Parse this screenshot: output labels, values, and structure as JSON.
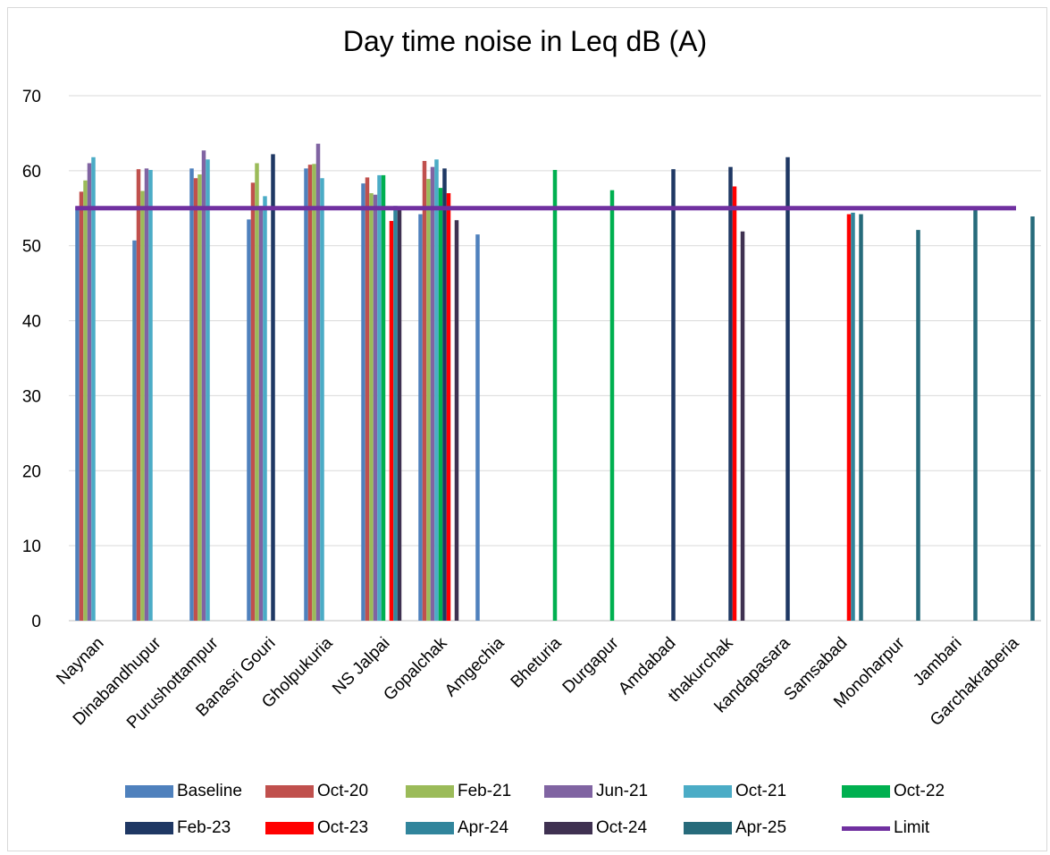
{
  "chart_data": {
    "type": "bar",
    "title": "Day time noise in Leq dB (A)",
    "xlabel": "",
    "ylabel": "",
    "ylim": [
      0,
      70
    ],
    "yticks": [
      0,
      10,
      20,
      30,
      40,
      50,
      60,
      70
    ],
    "grid": true,
    "legend_position": "bottom",
    "categories": [
      "Naynan",
      "Dinabandhupur",
      "Purushottampur",
      "Banasri Gouri",
      "Gholpukuria",
      "NS Jalpai",
      "Gopalchak",
      "Amgechia",
      "Bheturia",
      "Durgapur",
      "Amdabad",
      "thakurchak",
      "kandapasara",
      "Samsabad",
      "Monoharpur",
      "Jambari",
      "Garchakraberia"
    ],
    "series": [
      {
        "name": "Baseline",
        "color": "#4f81bd",
        "values": [
          55.2,
          50.7,
          60.3,
          53.5,
          60.3,
          58.3,
          54.2,
          51.5,
          null,
          null,
          null,
          null,
          null,
          null,
          null,
          null,
          null
        ]
      },
      {
        "name": "Oct-20",
        "color": "#c0504d",
        "values": [
          57.2,
          60.2,
          59.0,
          58.4,
          60.8,
          59.1,
          61.3,
          null,
          null,
          null,
          null,
          null,
          null,
          null,
          null,
          null,
          null
        ]
      },
      {
        "name": "Feb-21",
        "color": "#9bbb59",
        "values": [
          58.7,
          57.3,
          59.5,
          61.0,
          60.9,
          57.0,
          58.9,
          null,
          null,
          null,
          null,
          null,
          null,
          null,
          null,
          null,
          null
        ]
      },
      {
        "name": "Jun-21",
        "color": "#8064a2",
        "values": [
          61.0,
          60.3,
          62.7,
          55.3,
          63.6,
          56.8,
          60.5,
          null,
          null,
          null,
          null,
          null,
          null,
          null,
          null,
          null,
          null
        ]
      },
      {
        "name": "Oct-21",
        "color": "#4bacc6",
        "values": [
          61.8,
          60.1,
          61.5,
          56.6,
          59.0,
          59.4,
          61.5,
          null,
          null,
          null,
          null,
          null,
          null,
          null,
          null,
          null,
          null
        ]
      },
      {
        "name": "Oct-22",
        "color": "#00b050",
        "values": [
          null,
          null,
          null,
          null,
          null,
          59.4,
          57.7,
          null,
          60.1,
          57.4,
          null,
          null,
          null,
          null,
          null,
          null,
          null
        ]
      },
      {
        "name": "Feb-23",
        "color": "#1f3864",
        "values": [
          null,
          null,
          null,
          62.2,
          null,
          null,
          60.3,
          null,
          null,
          null,
          60.2,
          60.5,
          61.8,
          null,
          null,
          null,
          null
        ]
      },
      {
        "name": "Oct-23",
        "color": "#ff0000",
        "values": [
          null,
          null,
          null,
          null,
          null,
          53.3,
          57.0,
          null,
          null,
          null,
          null,
          57.9,
          null,
          54.2,
          null,
          null,
          null
        ]
      },
      {
        "name": "Apr-24",
        "color": "#31859c",
        "values": [
          null,
          null,
          null,
          null,
          null,
          55.3,
          null,
          null,
          null,
          null,
          null,
          null,
          null,
          54.4,
          null,
          null,
          null
        ]
      },
      {
        "name": "Oct-24",
        "color": "#3f3151",
        "values": [
          null,
          null,
          null,
          null,
          null,
          55.2,
          53.4,
          null,
          null,
          null,
          null,
          51.9,
          null,
          null,
          null,
          null,
          null
        ]
      },
      {
        "name": "Apr-25",
        "color": "#276b7b",
        "values": [
          null,
          null,
          null,
          null,
          null,
          null,
          null,
          null,
          null,
          null,
          null,
          null,
          null,
          54.2,
          52.1,
          54.8,
          53.9
        ]
      }
    ],
    "limit": {
      "name": "Limit",
      "color": "#7030a0",
      "value": 55
    }
  }
}
